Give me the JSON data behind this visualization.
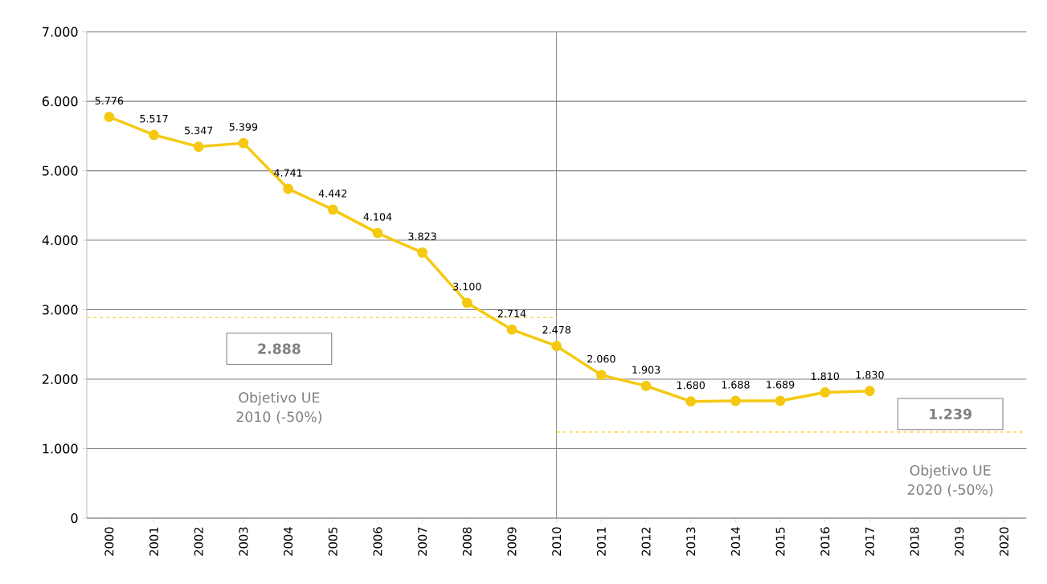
{
  "chart_data": {
    "type": "line",
    "categories": [
      "2000",
      "2001",
      "2002",
      "2003",
      "2004",
      "2005",
      "2006",
      "2007",
      "2008",
      "2009",
      "2010",
      "2011",
      "2012",
      "2013",
      "2014",
      "2015",
      "2016",
      "2017",
      "2018",
      "2019",
      "2020"
    ],
    "series": [
      {
        "color": "#f5c911",
        "values": [
          5776,
          5517,
          5347,
          5399,
          4741,
          4442,
          4104,
          3823,
          3100,
          2714,
          2478,
          2060,
          1903,
          1680,
          1688,
          1689,
          1810,
          1830,
          null,
          null,
          null
        ],
        "value_labels": [
          "5.776",
          "5.517",
          "5.347",
          "5.399",
          "4.741",
          "4.442",
          "4.104",
          "3.823",
          "3.100",
          "2.714",
          "2.478",
          "2.060",
          "1.903",
          "1.680",
          "1.688",
          "1.689",
          "1.810",
          "1.830",
          null,
          null,
          null
        ]
      }
    ],
    "ylim": [
      0,
      7000
    ],
    "yticks": [
      {
        "value": 0,
        "label": "0"
      },
      {
        "value": 1000,
        "label": "1.000"
      },
      {
        "value": 2000,
        "label": "2.000"
      },
      {
        "value": 3000,
        "label": "3.000"
      },
      {
        "value": 4000,
        "label": "4.000"
      },
      {
        "value": 5000,
        "label": "5.000"
      },
      {
        "value": 6000,
        "label": "6.000"
      },
      {
        "value": 7000,
        "label": "7.000"
      }
    ],
    "grid": "y",
    "marker": "circle",
    "line_style": "solid",
    "ref_lines": [
      {
        "axis": "x",
        "value": "2010",
        "color": "#808080",
        "line_style": "solid"
      },
      {
        "axis": "y",
        "value": 2888,
        "label": "2.888",
        "color": "#f5c911",
        "line_style": "dashed"
      },
      {
        "axis": "y",
        "value": 1239,
        "label": "1.239",
        "color": "#f5c911",
        "line_style": "dashed"
      }
    ],
    "annotations": [
      "Objetivo UE 2010 (-50%)",
      "Objetivo UE 2020 (-50%)"
    ]
  }
}
